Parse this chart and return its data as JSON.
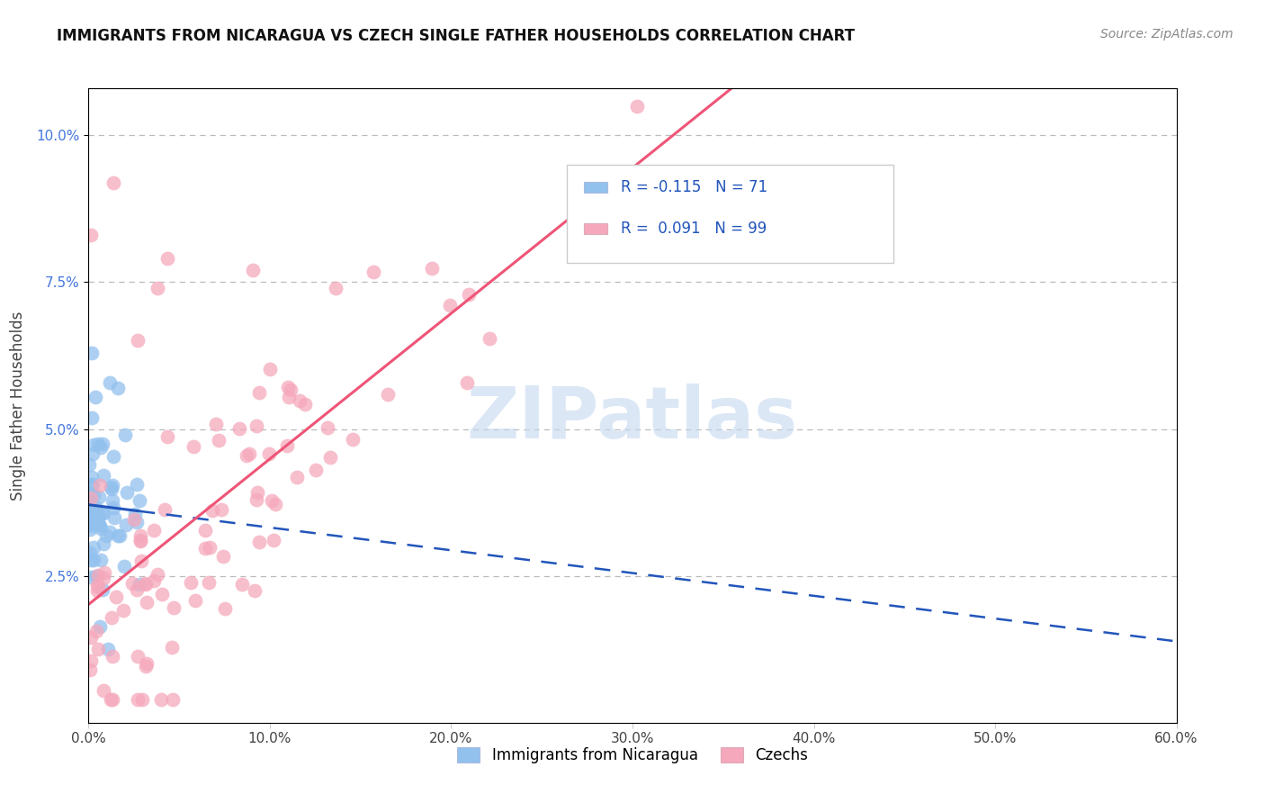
{
  "title": "IMMIGRANTS FROM NICARAGUA VS CZECH SINGLE FATHER HOUSEHOLDS CORRELATION CHART",
  "source": "Source: ZipAtlas.com",
  "ylabel_label": "Single Father Households",
  "legend1_label": "Immigrants from Nicaragua",
  "legend2_label": "Czechs",
  "R1": -0.115,
  "N1": 71,
  "R2": 0.091,
  "N2": 99,
  "color_blue": "#92C1EE",
  "color_pink": "#F5A8BB",
  "color_blue_line": "#2255BB",
  "color_pink_line": "#EE5577",
  "watermark_color": "#C5D8F0",
  "watermark": "ZIPatlas",
  "xlim": [
    0.0,
    0.6
  ],
  "ylim": [
    0.0,
    0.108
  ],
  "y_ticks": [
    0.025,
    0.05,
    0.075,
    0.1
  ],
  "x_ticks": [
    0.0,
    0.1,
    0.2,
    0.3,
    0.4,
    0.5,
    0.6
  ]
}
